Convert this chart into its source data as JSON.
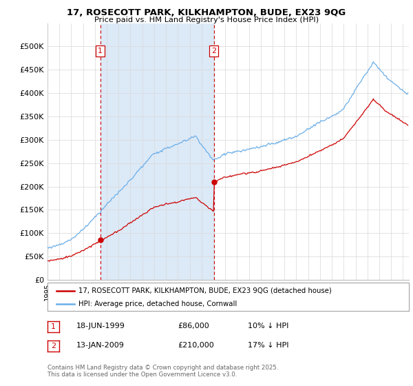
{
  "title_line1": "17, ROSECOTT PARK, KILKHAMPTON, BUDE, EX23 9QG",
  "title_line2": "Price paid vs. HM Land Registry's House Price Index (HPI)",
  "ylim": [
    0,
    550000
  ],
  "yticks": [
    0,
    50000,
    100000,
    150000,
    200000,
    250000,
    300000,
    350000,
    400000,
    450000,
    500000
  ],
  "ytick_labels": [
    "£0",
    "£50K",
    "£100K",
    "£150K",
    "£200K",
    "£250K",
    "£300K",
    "£350K",
    "£400K",
    "£450K",
    "£500K"
  ],
  "hpi_color": "#6aaee8",
  "price_color": "#CC0000",
  "dashed_color": "#CC0000",
  "shade_color": "#dce9f7",
  "background_color": "#FFFFFF",
  "grid_color": "#D8D8D8",
  "purchase1_date": 1999.46,
  "purchase1_price": 86000,
  "purchase1_label": "1",
  "purchase2_date": 2009.04,
  "purchase2_price": 210000,
  "purchase2_label": "2",
  "legend_line1": "17, ROSECOTT PARK, KILKHAMPTON, BUDE, EX23 9QG (detached house)",
  "legend_line2": "HPI: Average price, detached house, Cornwall",
  "footnote_line1": "Contains HM Land Registry data © Crown copyright and database right 2025.",
  "footnote_line2": "This data is licensed under the Open Government Licence v3.0.",
  "table_row1": [
    "1",
    "18-JUN-1999",
    "£86,000",
    "10% ↓ HPI"
  ],
  "table_row2": [
    "2",
    "13-JAN-2009",
    "£210,000",
    "17% ↓ HPI"
  ],
  "xmin": 1995.0,
  "xmax": 2025.5
}
